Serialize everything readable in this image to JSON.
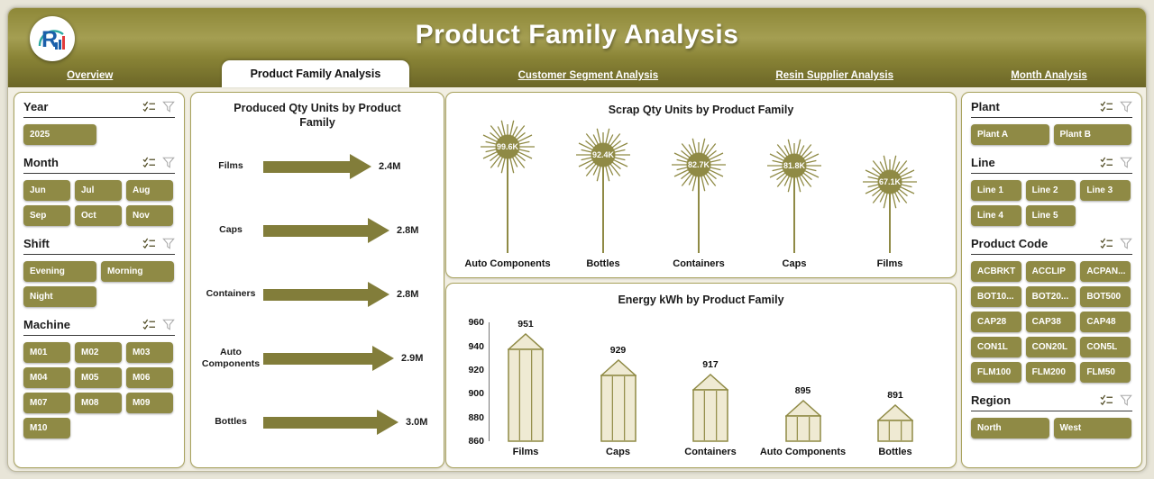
{
  "header": {
    "title": "Product Family Analysis"
  },
  "logo": {
    "letter": "R"
  },
  "tabs": [
    {
      "label": "Overview",
      "active": false
    },
    {
      "label": "Product Family Analysis",
      "active": true
    },
    {
      "label": "Customer Segment Analysis",
      "active": false
    },
    {
      "label": "Resin Supplier Analysis",
      "active": false
    },
    {
      "label": "Month Analysis",
      "active": false
    }
  ],
  "left_slicers": [
    {
      "title": "Year",
      "cols": 2,
      "items": [
        "2025"
      ]
    },
    {
      "title": "Month",
      "cols": 3,
      "items": [
        "Jun",
        "Jul",
        "Aug",
        "Sep",
        "Oct",
        "Nov"
      ]
    },
    {
      "title": "Shift",
      "cols": 2,
      "items": [
        "Evening",
        "Morning",
        "Night"
      ]
    },
    {
      "title": "Machine",
      "cols": 3,
      "items": [
        "M01",
        "M02",
        "M03",
        "M04",
        "M05",
        "M06",
        "M07",
        "M08",
        "M09",
        "M10"
      ]
    }
  ],
  "right_slicers": [
    {
      "title": "Plant",
      "cols": 2,
      "items": [
        "Plant A",
        "Plant B"
      ]
    },
    {
      "title": "Line",
      "cols": 3,
      "items": [
        "Line 1",
        "Line 2",
        "Line 3",
        "Line 4",
        "Line 5"
      ]
    },
    {
      "title": "Product Code",
      "cols": 3,
      "items": [
        "ACBRKT",
        "ACCLIP",
        "ACPAN...",
        "BOT10...",
        "BOT20...",
        "BOT500",
        "CAP28",
        "CAP38",
        "CAP48",
        "CON1L",
        "CON20L",
        "CON5L",
        "FLM100",
        "FLM200",
        "FLM50"
      ]
    },
    {
      "title": "Region",
      "cols": 2,
      "items": [
        "North",
        "West"
      ]
    }
  ],
  "slicer_icons": {
    "select": "checklist-icon",
    "clear": "funnel-icon"
  },
  "chart_data": [
    {
      "type": "bar",
      "variant": "arrow",
      "title": "Produced Qty Units by Product Family",
      "categories": [
        "Films",
        "Caps",
        "Containers",
        "Auto Components",
        "Bottles"
      ],
      "values": [
        2.4,
        2.8,
        2.8,
        2.9,
        3.0
      ],
      "unit": "M",
      "labels": [
        "2.4M",
        "2.8M",
        "2.8M",
        "2.9M",
        "3.0M"
      ]
    },
    {
      "type": "lollipop",
      "variant": "starburst",
      "title": "Scrap Qty Units by Product Family",
      "categories": [
        "Auto Components",
        "Bottles",
        "Containers",
        "Caps",
        "Films"
      ],
      "values": [
        99.6,
        92.4,
        82.7,
        81.8,
        67.1
      ],
      "unit": "K",
      "labels": [
        "99.6K",
        "92.4K",
        "82.7K",
        "81.8K",
        "67.1K"
      ]
    },
    {
      "type": "bar",
      "variant": "pencil",
      "title": "Energy kWh by Product Family",
      "categories": [
        "Films",
        "Caps",
        "Containers",
        "Auto Components",
        "Bottles"
      ],
      "values": [
        951,
        929,
        917,
        895,
        891
      ],
      "labels": [
        "951",
        "929",
        "917",
        "895",
        "891"
      ],
      "ylim": [
        860,
        960
      ],
      "yticks": [
        860,
        880,
        900,
        920,
        940,
        960
      ]
    }
  ],
  "colors": {
    "olive": "#8f8a45",
    "olive_dark": "#827d3a",
    "header_top": "#9a9448",
    "header_bottom": "#6b6627",
    "cream": "#f2efe3",
    "panel_border": "#a9a35e",
    "pencil_fill": "#efead3",
    "logo_blue": "#1b5faa",
    "logo_teal": "#2aa8a0",
    "logo_red": "#e23b3b"
  }
}
